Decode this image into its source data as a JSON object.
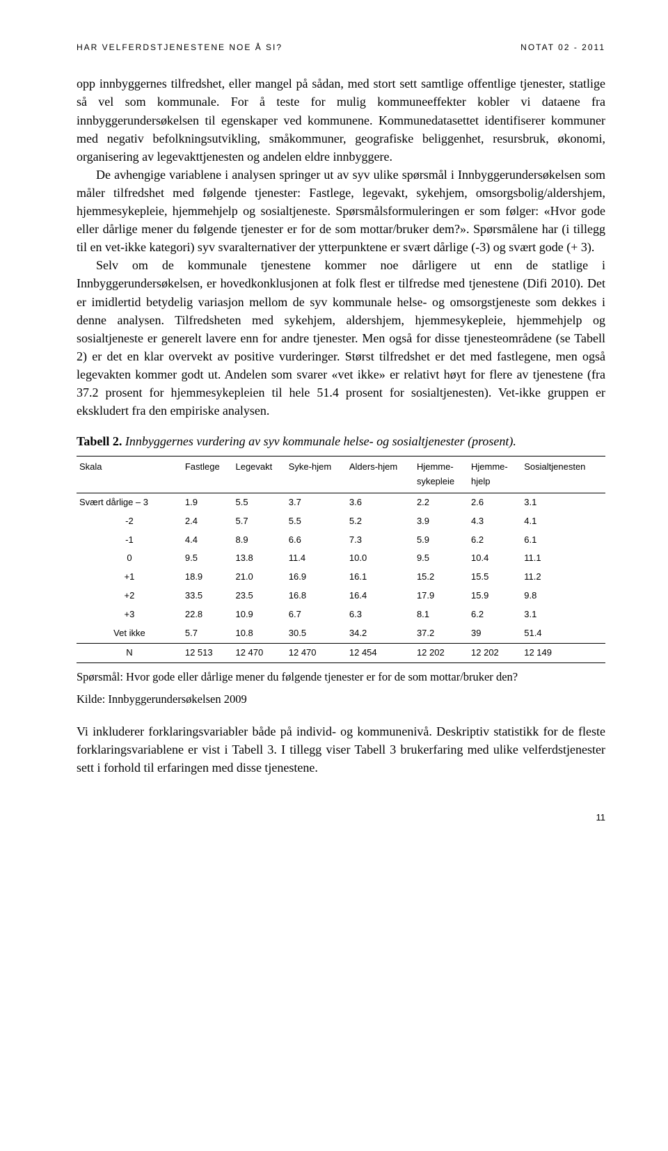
{
  "header": {
    "left": "HAR VELFERDSTJENESTENE NOE Å SI?",
    "right": "NOTAT 02 - 2011"
  },
  "paragraphs": {
    "p1": "opp innbyggernes tilfredshet, eller mangel på sådan, med stort sett samtlige offentlige tjenester, statlige så vel som kommunale. For å teste for mulig kommuneeffekter kobler vi dataene fra innbyggerundersøkelsen til egenskaper ved kommunene. Kommunedatasettet identifiserer kommuner med negativ befolkningsutvikling, småkommuner, geografiske beliggenhet, resursbruk, økonomi, organisering av legevakttjenesten og andelen eldre innbyggere.",
    "p2": "De avhengige variablene i analysen springer ut av syv ulike spørsmål i Innbyggerundersøkelsen som måler tilfredshet med følgende tjenester: Fastlege, legevakt, sykehjem, omsorgsbolig/aldershjem, hjemmesykepleie, hjemmehjelp og sosialtjeneste. Spørsmålsformuleringen er som følger: «Hvor gode eller dårlige mener du følgende tjenester er for de som mottar/bruker dem?». Spørsmålene har (i tillegg til en vet-ikke kategori) syv svaralternativer der ytterpunktene er svært dårlige (-3) og svært gode (+ 3).",
    "p3": "Selv om de kommunale tjenestene kommer noe dårligere ut enn de statlige i Innbyggerundersøkelsen, er hovedkonklusjonen at folk flest er tilfredse med tjenestene (Difi 2010). Det er imidlertid betydelig variasjon mellom de syv kommunale helse- og omsorgstjeneste som dekkes i denne analysen. Tilfredsheten med sykehjem, aldershjem, hjemmesykepleie, hjemmehjelp og sosialtjeneste er generelt lavere enn for andre tjenester. Men også for disse tjenesteområdene (se Tabell 2) er det en klar overvekt av positive vurderinger. Størst tilfredshet er det med fastlegene, men også legevakten kommer godt ut. Andelen som svarer «vet ikke» er relativt høyt for flere av tjenestene (fra 37.2 prosent for hjemmesykepleien til hele 51.4 prosent for sosialtjenesten). Vet-ikke gruppen er ekskludert fra den empiriske analysen."
  },
  "tableCaption": {
    "label": "Tabell 2.",
    "title": "Innbyggernes vurdering av syv kommunale helse- og sosialtjenester (prosent)."
  },
  "table": {
    "columns": [
      "Skala",
      "Fastlege",
      "Legevakt",
      "Syke-hjem",
      "Alders-hjem",
      "Hjemme-",
      "Hjemme-",
      "Sosialtjenesten"
    ],
    "subColumns": [
      "",
      "",
      "",
      "",
      "",
      "sykepleie",
      "hjelp",
      ""
    ],
    "rows": [
      [
        "Svært dårlige – 3",
        "1.9",
        "5.5",
        "3.7",
        "3.6",
        "2.2",
        "2.6",
        "3.1"
      ],
      [
        "-2",
        "2.4",
        "5.7",
        "5.5",
        "5.2",
        "3.9",
        "4.3",
        "4.1"
      ],
      [
        "-1",
        "4.4",
        "8.9",
        "6.6",
        "7.3",
        "5.9",
        "6.2",
        "6.1"
      ],
      [
        "0",
        "9.5",
        "13.8",
        "11.4",
        "10.0",
        "9.5",
        "10.4",
        "11.1"
      ],
      [
        "+1",
        "18.9",
        "21.0",
        "16.9",
        "16.1",
        "15.2",
        "15.5",
        "11.2"
      ],
      [
        "+2",
        "33.5",
        "23.5",
        "16.8",
        "16.4",
        "17.9",
        "15.9",
        "9.8"
      ],
      [
        "+3",
        "22.8",
        "10.9",
        "6.7",
        "6.3",
        "8.1",
        "6.2",
        "3.1"
      ],
      [
        "Vet ikke",
        "5.7",
        "10.8",
        "30.5",
        "34.2",
        "37.2",
        "39",
        "51.4"
      ],
      [
        "N",
        "12 513",
        "12 470",
        "12 470",
        "12 454",
        "12 202",
        "12 202",
        "12 149"
      ]
    ]
  },
  "tableNotes": {
    "n1": "Spørsmål: Hvor gode eller dårlige mener du følgende tjenester er for de som mottar/bruker den?",
    "n2": "Kilde: Innbyggerundersøkelsen 2009"
  },
  "afterTable": "Vi inkluderer forklaringsvariabler både på individ- og kommunenivå. Deskriptiv statistikk for de fleste forklaringsvariablene er vist i Tabell 3. I tillegg viser Tabell 3 brukerfaring med ulike velferdstjenester sett i forhold til erfaringen med disse tjenestene.",
  "pageNumber": "11"
}
